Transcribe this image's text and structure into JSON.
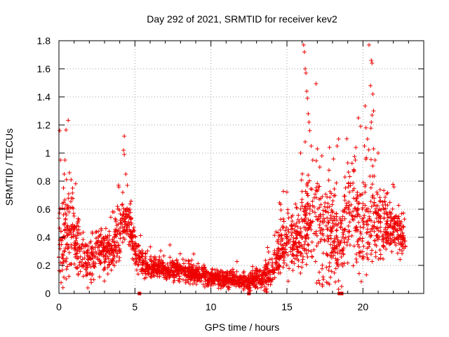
{
  "chart_data": {
    "type": "scatter",
    "title": "Day 292 of 2021, SRMTID for receiver kev2",
    "xlabel": "GPS time / hours",
    "ylabel": "SRMTID / TECUs",
    "xlim": [
      0,
      24
    ],
    "ylim": [
      0,
      1.8
    ],
    "x_ticks": [
      0,
      5,
      10,
      15,
      20
    ],
    "y_ticks": [
      0,
      0.2,
      0.4,
      0.6,
      0.8,
      1,
      1.2,
      1.4,
      1.6,
      1.8
    ],
    "grid": true,
    "marker": "plus",
    "color": "#ee0000",
    "envelope_hours": [
      0,
      0.5,
      1,
      1.5,
      2,
      2.5,
      3,
      3.5,
      4,
      4.5,
      5,
      5.5,
      6,
      7,
      8,
      9,
      10,
      11,
      12,
      12.5,
      13,
      13.5,
      14,
      14.5,
      15,
      15.5,
      16,
      16.5,
      17,
      17.5,
      18,
      18.5,
      19,
      19.5,
      20,
      20.5,
      21,
      21.5,
      22,
      22.5,
      22.8
    ],
    "envelope_median": [
      0.35,
      0.4,
      0.4,
      0.25,
      0.22,
      0.3,
      0.3,
      0.3,
      0.45,
      0.55,
      0.3,
      0.2,
      0.18,
      0.17,
      0.16,
      0.14,
      0.12,
      0.1,
      0.09,
      0.08,
      0.1,
      0.12,
      0.15,
      0.3,
      0.35,
      0.4,
      0.45,
      0.55,
      0.5,
      0.45,
      0.4,
      0.35,
      0.55,
      0.55,
      0.5,
      0.55,
      0.5,
      0.5,
      0.45,
      0.4,
      0.3
    ],
    "envelope_spread": [
      0.2,
      0.25,
      0.2,
      0.1,
      0.1,
      0.12,
      0.12,
      0.12,
      0.15,
      0.12,
      0.1,
      0.06,
      0.05,
      0.05,
      0.05,
      0.05,
      0.04,
      0.04,
      0.04,
      0.04,
      0.05,
      0.06,
      0.08,
      0.12,
      0.15,
      0.15,
      0.2,
      0.25,
      0.3,
      0.3,
      0.25,
      0.2,
      0.25,
      0.25,
      0.25,
      0.25,
      0.2,
      0.15,
      0.12,
      0.1,
      0.08
    ],
    "points_per_hour": 110,
    "outliers": [
      {
        "x": 0.05,
        "y": 1.16
      },
      {
        "x": 0.1,
        "y": 0.95
      },
      {
        "x": 0.4,
        "y": 0.95
      },
      {
        "x": 0.35,
        "y": 0.85
      },
      {
        "x": 0.8,
        "y": 0.81
      },
      {
        "x": 0.9,
        "y": 0.75
      },
      {
        "x": 4.3,
        "y": 1.12
      },
      {
        "x": 4.25,
        "y": 1.02
      },
      {
        "x": 4.3,
        "y": 0.99
      },
      {
        "x": 4.4,
        "y": 0.85
      },
      {
        "x": 4.5,
        "y": 0.77
      },
      {
        "x": 4.2,
        "y": 0.72
      },
      {
        "x": 16.1,
        "y": 1.77
      },
      {
        "x": 16.15,
        "y": 1.72
      },
      {
        "x": 16.2,
        "y": 1.6
      },
      {
        "x": 16.25,
        "y": 1.57
      },
      {
        "x": 16.3,
        "y": 1.44
      },
      {
        "x": 16.35,
        "y": 1.39
      },
      {
        "x": 16.4,
        "y": 1.28
      },
      {
        "x": 16.45,
        "y": 1.22
      },
      {
        "x": 16.5,
        "y": 1.16
      },
      {
        "x": 16.2,
        "y": 1.08
      },
      {
        "x": 16.6,
        "y": 1.05
      },
      {
        "x": 15.9,
        "y": 1.0
      },
      {
        "x": 16.7,
        "y": 0.95
      },
      {
        "x": 17.0,
        "y": 1.03
      },
      {
        "x": 17.3,
        "y": 0.98
      },
      {
        "x": 17.8,
        "y": 1.04
      },
      {
        "x": 18.4,
        "y": 1.1
      },
      {
        "x": 18.3,
        "y": 1.05
      },
      {
        "x": 19.0,
        "y": 0.93
      },
      {
        "x": 19.5,
        "y": 0.95
      },
      {
        "x": 20.4,
        "y": 1.77
      },
      {
        "x": 20.55,
        "y": 1.66
      },
      {
        "x": 20.6,
        "y": 1.64
      },
      {
        "x": 20.5,
        "y": 1.48
      },
      {
        "x": 20.65,
        "y": 1.42
      },
      {
        "x": 20.7,
        "y": 1.3
      },
      {
        "x": 20.6,
        "y": 1.27
      },
      {
        "x": 20.55,
        "y": 1.22
      },
      {
        "x": 20.2,
        "y": 1.18
      },
      {
        "x": 20.3,
        "y": 1.1
      },
      {
        "x": 20.7,
        "y": 1.03
      },
      {
        "x": 19.7,
        "y": 1.25
      },
      {
        "x": 19.85,
        "y": 1.19
      },
      {
        "x": 20.1,
        "y": 1.05
      },
      {
        "x": 21.0,
        "y": 1.0
      },
      {
        "x": 20.8,
        "y": 0.95
      },
      {
        "x": 17.4,
        "y": 0.1
      },
      {
        "x": 17.6,
        "y": 0.08
      },
      {
        "x": 18.4,
        "y": 0.09
      },
      {
        "x": 18.6,
        "y": 0.05
      },
      {
        "x": 1.9,
        "y": 0.04
      },
      {
        "x": 12.6,
        "y": 0.02
      },
      {
        "x": 13.6,
        "y": 0.03
      }
    ],
    "zero_points": [
      {
        "x": 5.3,
        "y": 0
      },
      {
        "x": 12.5,
        "y": 0
      },
      {
        "x": 18.45,
        "y": 0
      },
      {
        "x": 18.6,
        "y": 0
      }
    ]
  }
}
